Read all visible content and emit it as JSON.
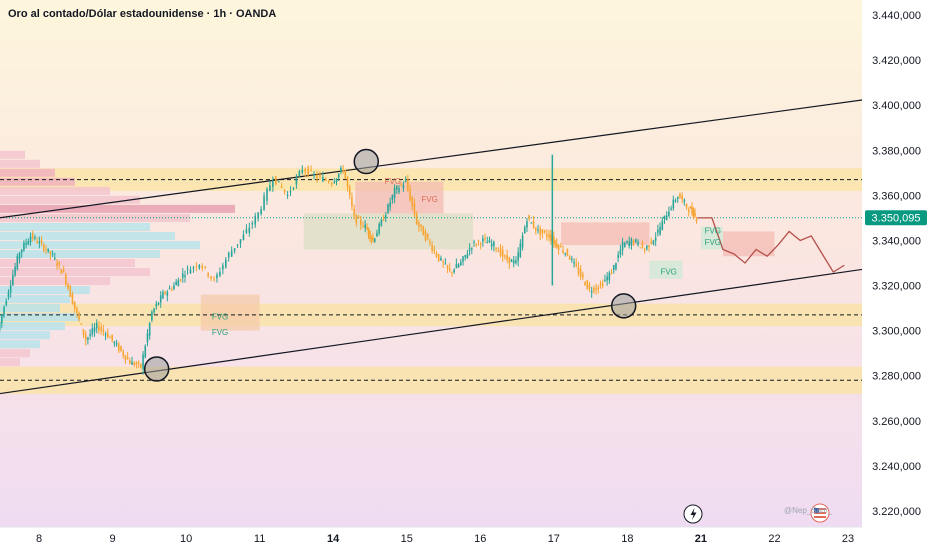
{
  "header": {
    "title": "Oro al contado/Dólar estadounidense · 1h · OANDA"
  },
  "price_label": "3.350,095",
  "watermark": "@Nep_Sam_",
  "colors": {
    "up": "#26a69a",
    "down": "#f7a530",
    "price_tag": "#089981",
    "projection": "#b5504a",
    "channel": "#131722",
    "fvg_red": "#e06a5a",
    "fvg_green": "#2aa079"
  },
  "chart_data": {
    "type": "line",
    "title": "Oro al contado/Dólar estadounidense · 1h · OANDA",
    "x_ticks": [
      {
        "label": "8",
        "x": 8,
        "bold": false
      },
      {
        "label": "9",
        "x": 9,
        "bold": false
      },
      {
        "label": "10",
        "x": 10,
        "bold": false
      },
      {
        "label": "11",
        "x": 11,
        "bold": false
      },
      {
        "label": "14",
        "x": 12,
        "bold": true
      },
      {
        "label": "15",
        "x": 13,
        "bold": false
      },
      {
        "label": "16",
        "x": 14,
        "bold": false
      },
      {
        "label": "17",
        "x": 15,
        "bold": false
      },
      {
        "label": "18",
        "x": 16,
        "bold": false
      },
      {
        "label": "21",
        "x": 17,
        "bold": true
      },
      {
        "label": "22",
        "x": 18,
        "bold": false
      },
      {
        "label": "23",
        "x": 19,
        "bold": false
      }
    ],
    "xlim": [
      7.45,
      19.8
    ],
    "ylim": [
      3210000,
      3445000
    ],
    "y_ticks": [
      {
        "label": "3.440,000",
        "v": 3440000
      },
      {
        "label": "3.420,000",
        "v": 3420000
      },
      {
        "label": "3.400,000",
        "v": 3400000
      },
      {
        "label": "3.380,000",
        "v": 3380000
      },
      {
        "label": "3.360,000",
        "v": 3360000
      },
      {
        "label": "3.340,000",
        "v": 3340000
      },
      {
        "label": "3.320,000",
        "v": 3320000
      },
      {
        "label": "3.300,000",
        "v": 3300000
      },
      {
        "label": "3.280,000",
        "v": 3280000
      },
      {
        "label": "3.260,000",
        "v": 3260000
      },
      {
        "label": "3.240,000",
        "v": 3240000
      },
      {
        "label": "3.220,000",
        "v": 3220000
      }
    ],
    "current_price": 3350095,
    "price_series": {
      "name": "",
      "x": [
        7.45,
        7.6,
        7.75,
        7.9,
        8.05,
        8.2,
        8.35,
        8.5,
        8.65,
        8.8,
        8.95,
        9.1,
        9.25,
        9.4,
        9.55,
        9.7,
        9.85,
        10.0,
        10.2,
        10.4,
        10.6,
        10.8,
        11.0,
        11.2,
        11.4,
        11.6,
        11.8,
        12.0,
        12.15,
        12.3,
        12.45,
        12.55,
        12.7,
        12.85,
        13.0,
        13.15,
        13.3,
        13.45,
        13.6,
        13.75,
        13.9,
        14.05,
        14.2,
        14.35,
        14.5,
        14.65,
        14.8,
        14.95,
        15.05,
        15.2,
        15.35,
        15.5,
        15.65,
        15.8,
        15.95,
        16.1,
        16.25,
        16.4,
        16.55,
        16.7,
        16.85,
        16.95
      ],
      "y": [
        3300000,
        3318000,
        3335000,
        3342000,
        3338000,
        3333000,
        3325000,
        3310000,
        3296000,
        3302000,
        3298000,
        3292000,
        3286000,
        3284000,
        3308000,
        3316000,
        3320000,
        3326000,
        3330000,
        3322000,
        3334000,
        3342000,
        3352000,
        3368000,
        3360000,
        3372000,
        3368000,
        3366000,
        3372000,
        3350000,
        3346000,
        3340000,
        3350000,
        3362000,
        3366000,
        3348000,
        3340000,
        3332000,
        3326000,
        3330000,
        3338000,
        3340000,
        3338000,
        3332000,
        3330000,
        3350000,
        3344000,
        3342000,
        3338000,
        3334000,
        3326000,
        3318000,
        3320000,
        3326000,
        3338000,
        3340000,
        3336000,
        3342000,
        3352000,
        3360000,
        3354000,
        3350000
      ]
    },
    "projection_series": {
      "name": "",
      "x": [
        16.95,
        17.15,
        17.3,
        17.45,
        17.6,
        17.75,
        17.9,
        18.05,
        18.2,
        18.35,
        18.5,
        18.65,
        18.8,
        18.95
      ],
      "y": [
        3350000,
        3350000,
        3336000,
        3334000,
        3330000,
        3336000,
        3333000,
        3338000,
        3344000,
        3340000,
        3342000,
        3334000,
        3326000,
        3329000
      ]
    },
    "channel_lines": [
      {
        "x": [
          7.45,
          19.8
        ],
        "y": [
          3272000,
          3330000
        ]
      },
      {
        "x": [
          7.45,
          19.8
        ],
        "y": [
          3350000,
          3405000
        ]
      }
    ],
    "dashed_levels": [
      3367000,
      3307000,
      3278000
    ],
    "zones": [
      {
        "y1": 3362000,
        "y2": 3372000,
        "color": "#fbe3a0"
      },
      {
        "y1": 3302000,
        "y2": 3312000,
        "color": "#fbe3a0"
      },
      {
        "y1": 3272000,
        "y2": 3284000,
        "color": "#fbe3a0"
      }
    ],
    "swing_circles": [
      {
        "x": 9.6,
        "y": 3283000
      },
      {
        "x": 12.45,
        "y": 3375000
      },
      {
        "x": 15.95,
        "y": 3311000
      }
    ],
    "fvg_labels": [
      {
        "text": "FVG",
        "x": 10.35,
        "y": 3305000,
        "color": "green"
      },
      {
        "text": "FVG",
        "x": 10.35,
        "y": 3298000,
        "color": "green"
      },
      {
        "text": "FVG",
        "x": 12.7,
        "y": 3365000,
        "color": "red"
      },
      {
        "text": "FVG",
        "x": 13.2,
        "y": 3357000,
        "color": "red"
      },
      {
        "text": "FVG",
        "x": 16.45,
        "y": 3325000,
        "color": "green"
      },
      {
        "text": "FVG",
        "x": 17.05,
        "y": 3343000,
        "color": "green"
      },
      {
        "text": "FVG",
        "x": 17.05,
        "y": 3338000,
        "color": "green"
      }
    ],
    "volume_profile": {
      "bins": [
        {
          "y": 3378000,
          "w": 25,
          "c": "#f3c6cf"
        },
        {
          "y": 3374000,
          "w": 40,
          "c": "#f3c6cf"
        },
        {
          "y": 3370000,
          "w": 55,
          "c": "#f1b3c0"
        },
        {
          "y": 3366000,
          "w": 75,
          "c": "#f1b3c0"
        },
        {
          "y": 3362000,
          "w": 110,
          "c": "#f3c6cf"
        },
        {
          "y": 3358000,
          "w": 140,
          "c": "#f3c6cf"
        },
        {
          "y": 3354000,
          "w": 235,
          "c": "#e8a1b4"
        },
        {
          "y": 3350000,
          "w": 190,
          "c": "#f3c6cf"
        },
        {
          "y": 3346000,
          "w": 150,
          "c": "#b9e3ea"
        },
        {
          "y": 3342000,
          "w": 175,
          "c": "#b9e3ea"
        },
        {
          "y": 3338000,
          "w": 200,
          "c": "#b9e3ea"
        },
        {
          "y": 3334000,
          "w": 160,
          "c": "#b9e3ea"
        },
        {
          "y": 3330000,
          "w": 135,
          "c": "#f3c6cf"
        },
        {
          "y": 3326000,
          "w": 150,
          "c": "#f3c6cf"
        },
        {
          "y": 3322000,
          "w": 110,
          "c": "#f3c6cf"
        },
        {
          "y": 3318000,
          "w": 90,
          "c": "#b9e3ea"
        },
        {
          "y": 3314000,
          "w": 70,
          "c": "#b9e3ea"
        },
        {
          "y": 3310000,
          "w": 60,
          "c": "#b9e3ea"
        },
        {
          "y": 3306000,
          "w": 80,
          "c": "#b9e3ea"
        },
        {
          "y": 3302000,
          "w": 65,
          "c": "#b9e3ea"
        },
        {
          "y": 3298000,
          "w": 50,
          "c": "#b9e3ea"
        },
        {
          "y": 3294000,
          "w": 40,
          "c": "#b9e3ea"
        },
        {
          "y": 3290000,
          "w": 30,
          "c": "#f3c6cf"
        },
        {
          "y": 3286000,
          "w": 20,
          "c": "#f3c6cf"
        }
      ]
    }
  }
}
